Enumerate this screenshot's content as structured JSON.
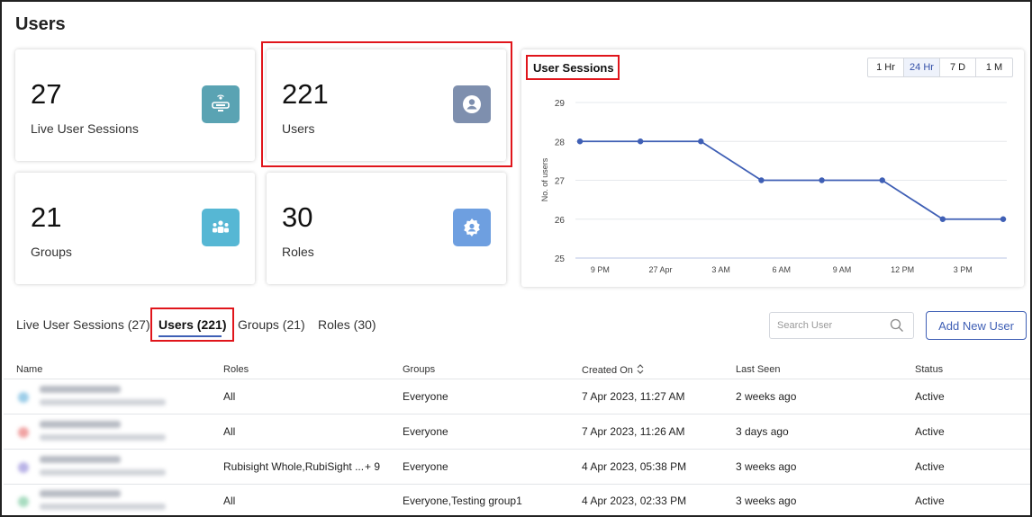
{
  "page": {
    "title": "Users"
  },
  "stats": [
    {
      "value": "27",
      "label": "Live User Sessions",
      "icon": "live-session-icon",
      "color": "#5aa3b3"
    },
    {
      "value": "221",
      "label": "Users",
      "icon": "user-icon",
      "color": "#7e8fae"
    },
    {
      "value": "21",
      "label": "Groups",
      "icon": "group-icon",
      "color": "#56b7d4"
    },
    {
      "value": "30",
      "label": "Roles",
      "icon": "role-icon",
      "color": "#6e9fe0"
    }
  ],
  "chart_panel": {
    "title": "User Sessions",
    "ranges": [
      "1 Hr",
      "24 Hr",
      "7 D",
      "1 M"
    ],
    "active_range": "24 Hr"
  },
  "chart_data": {
    "type": "line",
    "title": "User Sessions",
    "xlabel": "",
    "ylabel": "No. of users",
    "ylim": [
      25,
      29
    ],
    "y_ticks": [
      "29",
      "28",
      "27",
      "26",
      "25"
    ],
    "x_ticks": [
      "9 PM",
      "27 Apr",
      "3 AM",
      "6 AM",
      "9 AM",
      "12 PM",
      "3 PM"
    ],
    "series": [
      {
        "x": [
          "8 PM",
          "11 PM",
          "2 AM",
          "5 AM",
          "8 AM",
          "11 AM",
          "2 PM",
          "5 PM"
        ],
        "values": [
          28,
          28,
          28,
          27,
          27,
          27,
          26,
          26
        ]
      }
    ],
    "line_color": "#3f5fb5",
    "grid": true
  },
  "tabs": [
    {
      "label": "Live User Sessions (27)"
    },
    {
      "label": "Users (221)"
    },
    {
      "label": "Groups (21)"
    },
    {
      "label": "Roles (30)"
    }
  ],
  "search": {
    "placeholder": "Search User"
  },
  "add_button": {
    "label": "Add New User"
  },
  "table": {
    "headers": [
      "Name",
      "Roles",
      "Groups",
      "Created On",
      "Last Seen",
      "Status"
    ],
    "rows": [
      {
        "roles": "All",
        "groups": "Everyone",
        "created": "7 Apr 2023, 11:27 AM",
        "last_seen": "2 weeks ago",
        "status": "Active",
        "avatar_color": "#9ccde8"
      },
      {
        "roles": "All",
        "groups": "Everyone",
        "created": "7 Apr 2023, 11:26 AM",
        "last_seen": "3 days ago",
        "status": "Active",
        "avatar_color": "#f0a3a3"
      },
      {
        "roles": "Rubisight Whole,RubiSight ...",
        "roles_more": "+ 9",
        "groups": "Everyone",
        "created": "4 Apr 2023, 05:38 PM",
        "last_seen": "3 weeks ago",
        "status": "Active",
        "avatar_color": "#b9b3e6"
      },
      {
        "roles": "All",
        "groups": "Everyone,Testing group1",
        "created": "4 Apr 2023, 02:33 PM",
        "last_seen": "3 weeks ago",
        "status": "Active",
        "avatar_color": "#a8dcc0"
      }
    ]
  }
}
